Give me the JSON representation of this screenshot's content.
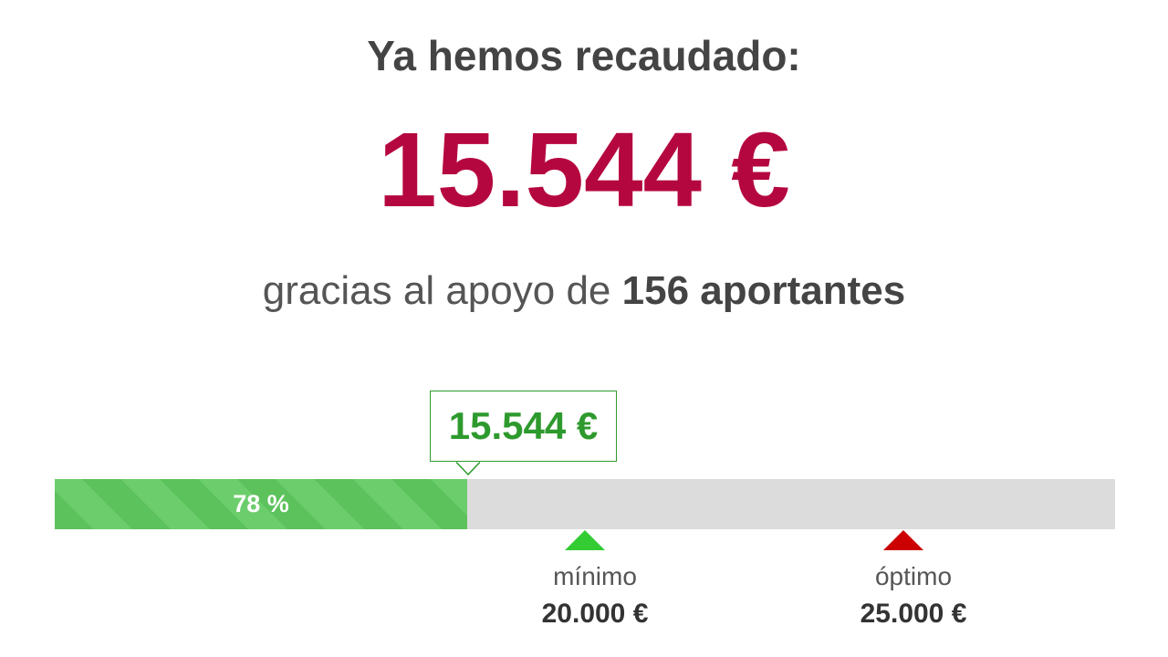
{
  "header": {
    "title": "Ya hemos recaudado:",
    "amount": "15.544 €",
    "support_text": "gracias al apoyo de",
    "support_count": "156 aportantes"
  },
  "progress": {
    "bubble": "15.544 €",
    "percent_label": "78 %",
    "milestones": [
      {
        "label": "mínimo",
        "amount": "20.000 €"
      },
      {
        "label": "óptimo",
        "amount": "25.000 €"
      }
    ]
  }
}
